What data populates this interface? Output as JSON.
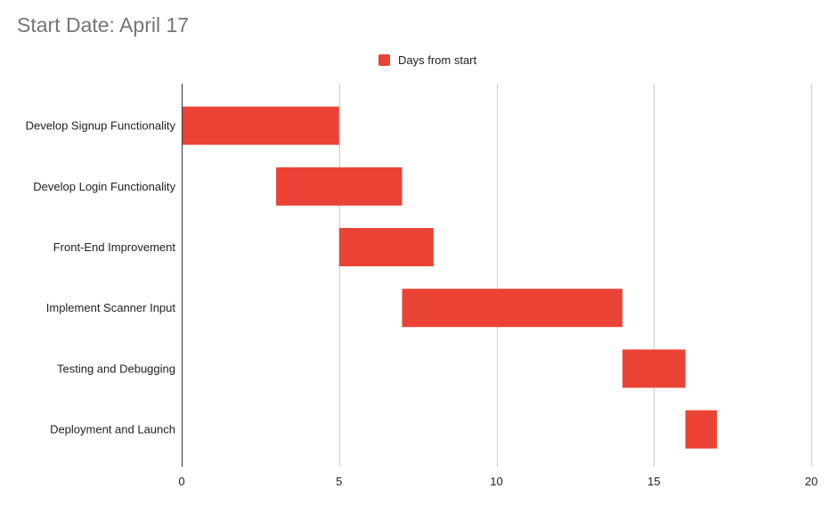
{
  "chart_data": {
    "type": "bar",
    "subtype": "gantt",
    "title": "Start Date: April 17",
    "xlabel": "",
    "ylabel": "",
    "legend": {
      "position": "top",
      "entries": [
        "Days from start"
      ]
    },
    "grid": {
      "vertical": true,
      "horizontal": false
    },
    "categories": [
      "Develop Signup Functionality",
      "Develop Login Functionality",
      "Front-End Improvement",
      "Implement Scanner Input",
      "Testing and Debugging",
      "Deployment and Launch"
    ],
    "series": [
      {
        "name": "Days from start",
        "color": "#ea4335",
        "start": [
          0,
          3,
          5,
          7,
          14,
          16
        ],
        "end": [
          5,
          7,
          8,
          14,
          16,
          17
        ]
      }
    ],
    "xlim": [
      0,
      20
    ],
    "xticks": [
      0,
      5,
      10,
      15,
      20
    ]
  }
}
